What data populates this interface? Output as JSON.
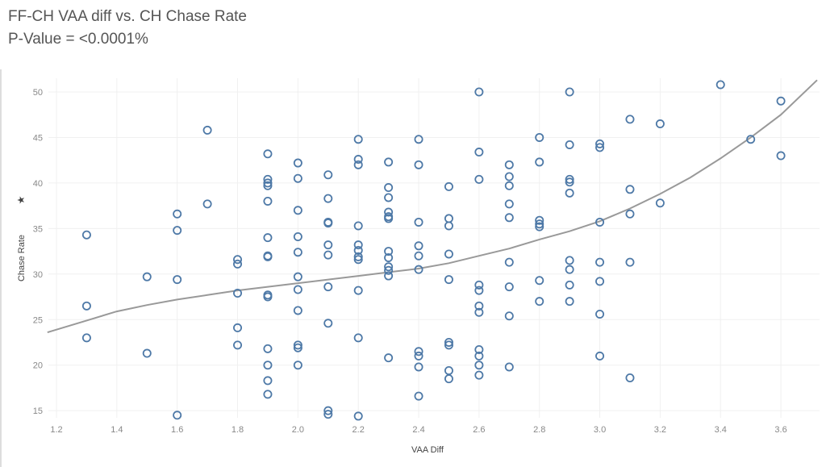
{
  "chart_data": {
    "type": "scatter",
    "title": "FF-CH VAA diff vs. CH Chase Rate",
    "subtitle": "P-Value = <0.0001%",
    "xlabel": "VAA Diff",
    "ylabel": "Chase Rate",
    "ylabel_icon": "star-icon",
    "xlim": [
      1.17,
      3.73
    ],
    "ylim": [
      14,
      51.5
    ],
    "xticks": [
      "1.2",
      "1.4",
      "1.6",
      "1.8",
      "2.0",
      "2.2",
      "2.4",
      "2.6",
      "2.8",
      "3.0",
      "3.2",
      "3.4",
      "3.6"
    ],
    "yticks": [
      "15",
      "20",
      "25",
      "30",
      "35",
      "40",
      "45",
      "50"
    ],
    "grid": true,
    "marker_color": "#4e79a7",
    "trend_color": "#999999",
    "points": [
      [
        1.3,
        34.3
      ],
      [
        1.3,
        26.5
      ],
      [
        1.3,
        23.0
      ],
      [
        1.5,
        29.7
      ],
      [
        1.5,
        21.3
      ],
      [
        1.6,
        36.6
      ],
      [
        1.6,
        34.8
      ],
      [
        1.6,
        29.4
      ],
      [
        1.6,
        14.5
      ],
      [
        1.7,
        45.8
      ],
      [
        1.7,
        37.7
      ],
      [
        1.8,
        31.6
      ],
      [
        1.8,
        31.1
      ],
      [
        1.8,
        27.9
      ],
      [
        1.8,
        24.1
      ],
      [
        1.8,
        22.2
      ],
      [
        1.9,
        43.2
      ],
      [
        1.9,
        40.4
      ],
      [
        1.9,
        40.0
      ],
      [
        1.9,
        39.7
      ],
      [
        1.9,
        38.0
      ],
      [
        1.9,
        34.0
      ],
      [
        1.9,
        32.0
      ],
      [
        1.9,
        31.9
      ],
      [
        1.9,
        27.7
      ],
      [
        1.9,
        27.5
      ],
      [
        1.9,
        21.8
      ],
      [
        1.9,
        20.0
      ],
      [
        1.9,
        18.3
      ],
      [
        1.9,
        16.8
      ],
      [
        2.0,
        42.2
      ],
      [
        2.0,
        40.5
      ],
      [
        2.0,
        37.0
      ],
      [
        2.0,
        34.1
      ],
      [
        2.0,
        32.4
      ],
      [
        2.0,
        29.7
      ],
      [
        2.0,
        28.3
      ],
      [
        2.0,
        26.0
      ],
      [
        2.0,
        22.2
      ],
      [
        2.0,
        21.9
      ],
      [
        2.0,
        20.0
      ],
      [
        2.1,
        40.9
      ],
      [
        2.1,
        38.3
      ],
      [
        2.1,
        35.7
      ],
      [
        2.1,
        35.6
      ],
      [
        2.1,
        33.2
      ],
      [
        2.1,
        32.1
      ],
      [
        2.1,
        28.6
      ],
      [
        2.1,
        24.6
      ],
      [
        2.1,
        15.0
      ],
      [
        2.1,
        14.6
      ],
      [
        2.2,
        44.8
      ],
      [
        2.2,
        42.6
      ],
      [
        2.2,
        42.0
      ],
      [
        2.2,
        35.3
      ],
      [
        2.2,
        33.2
      ],
      [
        2.2,
        32.6
      ],
      [
        2.2,
        31.9
      ],
      [
        2.2,
        31.6
      ],
      [
        2.2,
        28.2
      ],
      [
        2.2,
        23.0
      ],
      [
        2.2,
        14.4
      ],
      [
        2.3,
        42.3
      ],
      [
        2.3,
        39.5
      ],
      [
        2.3,
        38.4
      ],
      [
        2.3,
        36.8
      ],
      [
        2.3,
        36.3
      ],
      [
        2.3,
        36.1
      ],
      [
        2.3,
        32.5
      ],
      [
        2.3,
        31.8
      ],
      [
        2.3,
        30.8
      ],
      [
        2.3,
        30.4
      ],
      [
        2.3,
        29.8
      ],
      [
        2.3,
        20.8
      ],
      [
        2.4,
        44.8
      ],
      [
        2.4,
        42.0
      ],
      [
        2.4,
        35.7
      ],
      [
        2.4,
        33.1
      ],
      [
        2.4,
        32.0
      ],
      [
        2.4,
        30.5
      ],
      [
        2.4,
        21.5
      ],
      [
        2.4,
        21.0
      ],
      [
        2.4,
        19.8
      ],
      [
        2.4,
        16.6
      ],
      [
        2.5,
        39.6
      ],
      [
        2.5,
        36.1
      ],
      [
        2.5,
        35.3
      ],
      [
        2.5,
        32.2
      ],
      [
        2.5,
        29.4
      ],
      [
        2.5,
        22.5
      ],
      [
        2.5,
        22.2
      ],
      [
        2.5,
        19.4
      ],
      [
        2.5,
        18.5
      ],
      [
        2.6,
        50.0
      ],
      [
        2.6,
        43.4
      ],
      [
        2.6,
        40.4
      ],
      [
        2.6,
        28.8
      ],
      [
        2.6,
        28.2
      ],
      [
        2.6,
        26.5
      ],
      [
        2.6,
        25.8
      ],
      [
        2.6,
        21.7
      ],
      [
        2.6,
        21.0
      ],
      [
        2.6,
        20.0
      ],
      [
        2.6,
        18.9
      ],
      [
        2.7,
        42.0
      ],
      [
        2.7,
        40.7
      ],
      [
        2.7,
        39.7
      ],
      [
        2.7,
        37.7
      ],
      [
        2.7,
        36.2
      ],
      [
        2.7,
        31.3
      ],
      [
        2.7,
        28.6
      ],
      [
        2.7,
        25.4
      ],
      [
        2.7,
        19.8
      ],
      [
        2.8,
        45.0
      ],
      [
        2.8,
        42.3
      ],
      [
        2.8,
        35.9
      ],
      [
        2.8,
        35.5
      ],
      [
        2.8,
        35.2
      ],
      [
        2.8,
        29.3
      ],
      [
        2.8,
        27.0
      ],
      [
        2.9,
        50.0
      ],
      [
        2.9,
        44.2
      ],
      [
        2.9,
        40.4
      ],
      [
        2.9,
        40.1
      ],
      [
        2.9,
        38.9
      ],
      [
        2.9,
        31.5
      ],
      [
        2.9,
        30.5
      ],
      [
        2.9,
        28.8
      ],
      [
        2.9,
        27.0
      ],
      [
        3.0,
        44.3
      ],
      [
        3.0,
        43.9
      ],
      [
        3.0,
        35.7
      ],
      [
        3.0,
        31.3
      ],
      [
        3.0,
        29.2
      ],
      [
        3.0,
        25.6
      ],
      [
        3.0,
        21.0
      ],
      [
        3.1,
        47.0
      ],
      [
        3.1,
        39.3
      ],
      [
        3.1,
        36.6
      ],
      [
        3.1,
        31.3
      ],
      [
        3.1,
        18.6
      ],
      [
        3.2,
        46.5
      ],
      [
        3.2,
        37.8
      ],
      [
        3.4,
        50.8
      ],
      [
        3.5,
        44.8
      ],
      [
        3.6,
        49.0
      ],
      [
        3.6,
        43.0
      ]
    ],
    "trend_line": [
      [
        1.17,
        23.6
      ],
      [
        1.3,
        24.9
      ],
      [
        1.4,
        25.9
      ],
      [
        1.5,
        26.6
      ],
      [
        1.6,
        27.2
      ],
      [
        1.7,
        27.7
      ],
      [
        1.8,
        28.2
      ],
      [
        1.9,
        28.6
      ],
      [
        2.0,
        29.0
      ],
      [
        2.1,
        29.4
      ],
      [
        2.2,
        29.8
      ],
      [
        2.3,
        30.2
      ],
      [
        2.4,
        30.6
      ],
      [
        2.5,
        31.2
      ],
      [
        2.6,
        32.0
      ],
      [
        2.7,
        32.8
      ],
      [
        2.8,
        33.8
      ],
      [
        2.9,
        34.7
      ],
      [
        3.0,
        35.8
      ],
      [
        3.1,
        37.2
      ],
      [
        3.2,
        38.8
      ],
      [
        3.3,
        40.6
      ],
      [
        3.4,
        42.7
      ],
      [
        3.5,
        45.0
      ],
      [
        3.6,
        47.5
      ],
      [
        3.72,
        51.3
      ]
    ]
  }
}
